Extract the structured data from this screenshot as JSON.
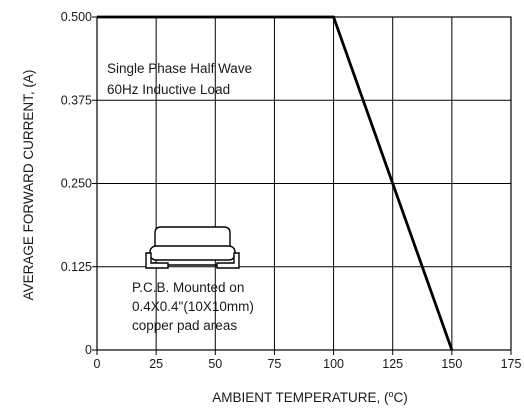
{
  "chart_data": {
    "type": "line",
    "title": "",
    "xlabel_main": "AMBIENT TEMPERATURE, (",
    "xlabel_sup": "o",
    "xlabel_tail": "C)",
    "ylabel": "AVERAGE FORWARD CURRENT, (A)",
    "xlim": [
      0,
      175
    ],
    "ylim": [
      0,
      0.5
    ],
    "x_ticks": [
      0,
      25,
      50,
      75,
      100,
      125,
      150,
      175
    ],
    "x_tick_labels": [
      "0",
      "25",
      "50",
      "75",
      "100",
      "125",
      "150",
      "175"
    ],
    "y_ticks": [
      0,
      0.125,
      0.25,
      0.375,
      0.5
    ],
    "y_tick_labels": [
      "0",
      "0.125",
      "0.250",
      "0.375",
      "0.500"
    ],
    "grid": true,
    "series": [
      {
        "x": [
          0,
          100,
          150
        ],
        "y": [
          0.5,
          0.5,
          0
        ]
      }
    ],
    "annotations": {
      "load_line1": "Single Phase Half Wave",
      "load_line2": "60Hz Inductive Load",
      "pcb_line1": "P.C.B. Mounted on",
      "pcb_line2": "0.4X0.4\"(10X10mm)",
      "pcb_line3": "copper pad areas"
    }
  },
  "colors": {
    "grid": "#000000",
    "line": "#000000",
    "package_fill": "#ffffff"
  },
  "icons": {
    "package": "smd-package-icon"
  }
}
